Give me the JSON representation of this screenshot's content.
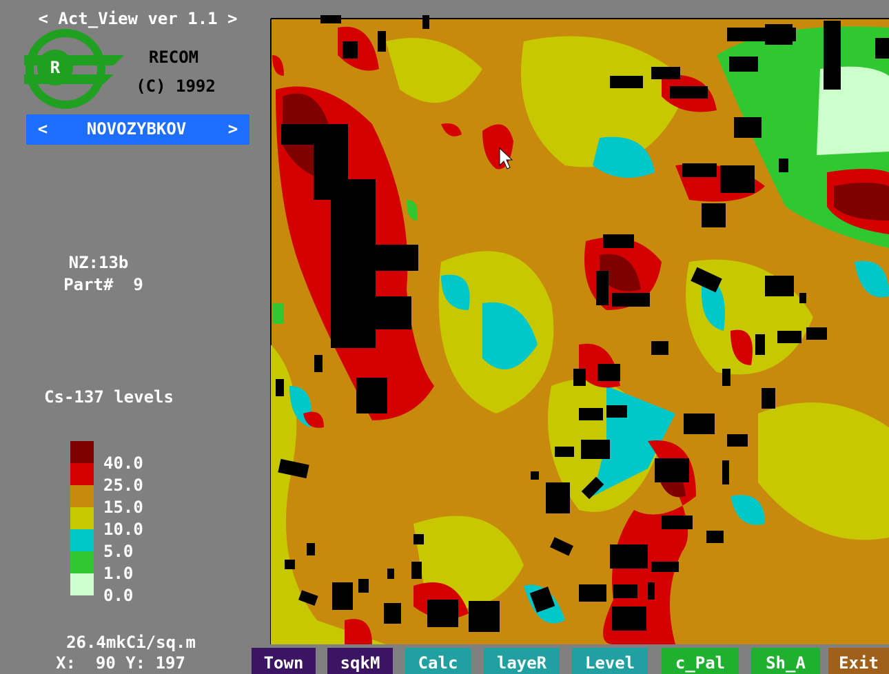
{
  "header": {
    "title": "< Act_View ver 1.1 >",
    "company": "RECOM",
    "copyright": "(C) 1992",
    "logo_letter": "R"
  },
  "town_selector": {
    "prev": "<",
    "name": "NOVOZYBKOV",
    "next": ">"
  },
  "info": {
    "zone": "NZ:13b",
    "part": "Part#  9"
  },
  "legend": {
    "title": "Cs-137 levels",
    "items": [
      {
        "label": "40.0",
        "color": "#800000"
      },
      {
        "label": "25.0",
        "color": "#d40000"
      },
      {
        "label": "15.0",
        "color": "#c88a0c"
      },
      {
        "label": "10.0",
        "color": "#c8c800"
      },
      {
        "label": "5.0",
        "color": "#00c8c8"
      },
      {
        "label": "1.0",
        "color": "#30c830"
      },
      {
        "label": "0.0",
        "color": "#ccffcc"
      }
    ]
  },
  "status": {
    "reading": "26.4mkCi/sq.m",
    "coords": "X:  90 Y: 197"
  },
  "buttons": [
    {
      "label": "Town",
      "color": "#3c1464"
    },
    {
      "label": "sqkM",
      "color": "#3c1464"
    },
    {
      "label": "Calc",
      "color": "#20a0a0"
    },
    {
      "label": "layeR",
      "color": "#20a0a0"
    },
    {
      "label": "Level",
      "color": "#20a0a0"
    },
    {
      "label": "c_Pal",
      "color": "#20b030"
    },
    {
      "label": "Sh_A",
      "color": "#20b030"
    },
    {
      "label": "Exit",
      "color": "#a0601a"
    }
  ]
}
